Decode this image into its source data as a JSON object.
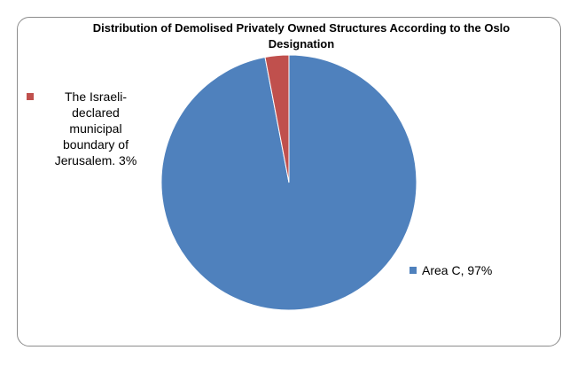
{
  "chart_data": {
    "type": "pie",
    "title": "Distribution of Demolised Privately Owned Structures According to the Oslo Designation",
    "slices": [
      {
        "label": "Area C, 97%",
        "value": 97,
        "color": "#4f81bd"
      },
      {
        "label": "The Israeli-declared municipal boundary of Jerusalem. 3%",
        "value": 3,
        "color": "#c0504d"
      }
    ],
    "legend": {
      "area_c": "Area C, 97%",
      "jerusalem_lines": [
        "The Israeli-",
        "declared",
        "municipal",
        "boundary of",
        "Jerusalem. 3%"
      ]
    }
  }
}
